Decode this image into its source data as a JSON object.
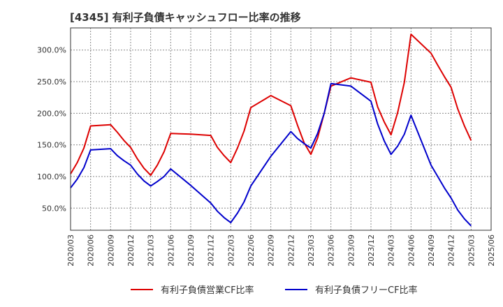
{
  "chart_data": {
    "type": "line",
    "title": "[4345]  有利子負債キャッシュフロー比率の推移",
    "xlabel": "",
    "ylabel": "",
    "x_ticks": [
      "2020/03",
      "2020/06",
      "2020/09",
      "2020/12",
      "2021/03",
      "2021/06",
      "2021/09",
      "2021/12",
      "2022/03",
      "2022/06",
      "2022/09",
      "2022/12",
      "2023/03",
      "2023/06",
      "2023/09",
      "2023/12",
      "2024/03",
      "2024/06",
      "2024/09",
      "2024/12",
      "2025/03",
      "2025/06"
    ],
    "y_ticks": [
      "50.0%",
      "100.0%",
      "150.0%",
      "200.0%",
      "250.0%",
      "300.0%"
    ],
    "y_tick_values": [
      50,
      100,
      150,
      200,
      250,
      300
    ],
    "ylim": [
      15,
      335
    ],
    "xlim": [
      "2020/03",
      "2025/06"
    ],
    "grid": true,
    "legend_position": "bottom",
    "series": [
      {
        "name": "有利子負債営業CF比率",
        "color": "#dd0000",
        "points": [
          [
            "2020/03",
            104
          ],
          [
            "2020/04",
            122
          ],
          [
            "2020/05",
            145
          ],
          [
            "2020/06",
            180
          ],
          [
            "2020/09",
            182
          ],
          [
            "2020/10",
            170
          ],
          [
            "2020/11",
            157
          ],
          [
            "2020/12",
            146
          ],
          [
            "2021/01",
            128
          ],
          [
            "2021/02",
            113
          ],
          [
            "2021/03",
            102
          ],
          [
            "2021/04",
            118
          ],
          [
            "2021/05",
            139
          ],
          [
            "2021/06",
            168
          ],
          [
            "2021/09",
            167
          ],
          [
            "2021/12",
            165
          ],
          [
            "2022/01",
            146
          ],
          [
            "2022/02",
            133
          ],
          [
            "2022/03",
            122
          ],
          [
            "2022/04",
            145
          ],
          [
            "2022/05",
            172
          ],
          [
            "2022/06",
            209
          ],
          [
            "2022/09",
            228
          ],
          [
            "2022/12",
            212
          ],
          [
            "2023/01",
            181
          ],
          [
            "2023/02",
            153
          ],
          [
            "2023/03",
            135
          ],
          [
            "2023/04",
            161
          ],
          [
            "2023/05",
            200
          ],
          [
            "2023/06",
            243
          ],
          [
            "2023/09",
            256
          ],
          [
            "2023/12",
            249
          ],
          [
            "2024/01",
            210
          ],
          [
            "2024/02",
            186
          ],
          [
            "2024/03",
            166
          ],
          [
            "2024/04",
            201
          ],
          [
            "2024/05",
            249
          ],
          [
            "2024/06",
            325
          ],
          [
            "2024/09",
            295
          ],
          [
            "2024/10",
            276
          ],
          [
            "2024/11",
            258
          ],
          [
            "2024/12",
            241
          ],
          [
            "2025/01",
            207
          ],
          [
            "2025/02",
            180
          ],
          [
            "2025/03",
            157
          ]
        ]
      },
      {
        "name": "有利子負債フリーCF比率",
        "color": "#0000cc",
        "points": [
          [
            "2020/03",
            82
          ],
          [
            "2020/04",
            96
          ],
          [
            "2020/05",
            114
          ],
          [
            "2020/06",
            142
          ],
          [
            "2020/09",
            144
          ],
          [
            "2020/10",
            133
          ],
          [
            "2020/11",
            125
          ],
          [
            "2020/12",
            118
          ],
          [
            "2021/01",
            104
          ],
          [
            "2021/02",
            93
          ],
          [
            "2021/03",
            85
          ],
          [
            "2021/04",
            92
          ],
          [
            "2021/05",
            100
          ],
          [
            "2021/06",
            112
          ],
          [
            "2021/09",
            86
          ],
          [
            "2021/12",
            58
          ],
          [
            "2022/01",
            45
          ],
          [
            "2022/02",
            35
          ],
          [
            "2022/03",
            27
          ],
          [
            "2022/04",
            42
          ],
          [
            "2022/05",
            60
          ],
          [
            "2022/06",
            85
          ],
          [
            "2022/09",
            132
          ],
          [
            "2022/12",
            171
          ],
          [
            "2023/01",
            160
          ],
          [
            "2023/02",
            152
          ],
          [
            "2023/03",
            145
          ],
          [
            "2023/04",
            168
          ],
          [
            "2023/05",
            200
          ],
          [
            "2023/06",
            247
          ],
          [
            "2023/09",
            243
          ],
          [
            "2023/12",
            219
          ],
          [
            "2024/01",
            183
          ],
          [
            "2024/02",
            156
          ],
          [
            "2024/03",
            135
          ],
          [
            "2024/04",
            148
          ],
          [
            "2024/05",
            167
          ],
          [
            "2024/06",
            197
          ],
          [
            "2024/09",
            118
          ],
          [
            "2024/10",
            100
          ],
          [
            "2024/11",
            82
          ],
          [
            "2024/12",
            66
          ],
          [
            "2025/01",
            47
          ],
          [
            "2025/02",
            33
          ],
          [
            "2025/03",
            22
          ]
        ]
      }
    ]
  }
}
